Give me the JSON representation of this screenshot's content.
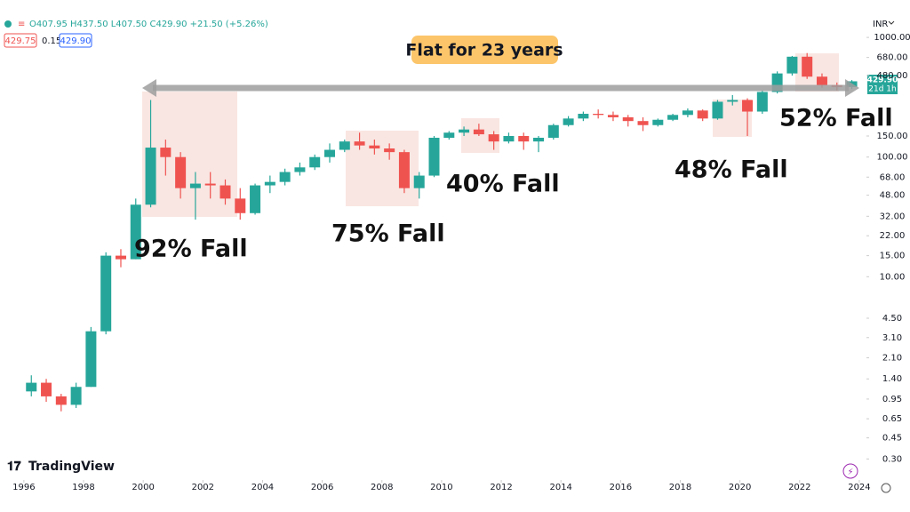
{
  "chart_data": {
    "type": "candlestick",
    "ohlc_text": "O407.95 H437.50 L407.50 C429.90 +21.50 (+5.26%)",
    "bid": "429.75",
    "spread": "0.15",
    "ask": "429.90",
    "currency": "INR",
    "last_price_label": "429.90",
    "countdown": "21d 1h",
    "brand": "TradingView",
    "badge": "Flat for 23 years",
    "annotations": [
      "92% Fall",
      "75% Fall",
      "40% Fall",
      "48% Fall",
      "52% Fall"
    ],
    "log_scale": true,
    "up_color": "#26a69a",
    "down_color": "#ef5350",
    "x": [
      1996.0,
      1996.5,
      1997.0,
      1997.5,
      1998.0,
      1998.5,
      1999.0,
      1999.5,
      2000.0,
      2000.5,
      2001.0,
      2001.5,
      2002.0,
      2002.5,
      2003.0,
      2003.5,
      2004.0,
      2004.5,
      2005.0,
      2005.5,
      2006.0,
      2006.5,
      2007.0,
      2007.5,
      2008.0,
      2008.5,
      2009.0,
      2009.5,
      2010.0,
      2010.5,
      2011.0,
      2011.5,
      2012.0,
      2012.5,
      2013.0,
      2013.5,
      2014.0,
      2014.5,
      2015.0,
      2015.5,
      2016.0,
      2016.5,
      2017.0,
      2017.5,
      2018.0,
      2018.5,
      2019.0,
      2019.5,
      2020.0,
      2020.5,
      2021.0,
      2021.5,
      2022.0,
      2022.5,
      2023.0,
      2023.5
    ],
    "open": [
      1.1,
      1.3,
      1.0,
      0.85,
      1.2,
      3.5,
      15,
      14,
      40,
      120,
      100,
      55,
      60,
      58,
      45,
      34,
      58,
      62,
      75,
      82,
      100,
      115,
      135,
      125,
      118,
      110,
      55,
      70,
      145,
      160,
      170,
      155,
      135,
      150,
      135,
      145,
      185,
      210,
      230,
      225,
      215,
      200,
      185,
      205,
      225,
      245,
      210,
      290,
      300,
      240,
      350,
      500,
      690,
      470,
      400,
      385
    ],
    "high": [
      1.5,
      1.4,
      1.05,
      1.3,
      3.8,
      16,
      17,
      45,
      300,
      140,
      110,
      75,
      75,
      65,
      55,
      60,
      70,
      80,
      90,
      105,
      130,
      140,
      160,
      140,
      130,
      115,
      75,
      150,
      165,
      180,
      190,
      165,
      160,
      160,
      150,
      190,
      220,
      240,
      250,
      240,
      225,
      215,
      210,
      230,
      255,
      250,
      300,
      330,
      310,
      360,
      520,
      700,
      740,
      500,
      420,
      440
    ],
    "low": [
      1.0,
      0.9,
      0.75,
      0.8,
      1.2,
      3.3,
      12,
      14,
      38,
      70,
      45,
      30,
      45,
      40,
      30,
      33,
      50,
      58,
      70,
      78,
      90,
      110,
      115,
      105,
      95,
      50,
      45,
      68,
      140,
      150,
      150,
      115,
      130,
      115,
      110,
      140,
      180,
      200,
      210,
      200,
      180,
      165,
      180,
      200,
      215,
      200,
      205,
      270,
      150,
      230,
      340,
      480,
      450,
      380,
      360,
      370
    ],
    "close": [
      1.3,
      1.0,
      0.85,
      1.2,
      3.5,
      15,
      14,
      40,
      120,
      100,
      55,
      60,
      58,
      45,
      34,
      58,
      62,
      75,
      82,
      100,
      115,
      135,
      125,
      118,
      110,
      55,
      70,
      145,
      160,
      170,
      155,
      135,
      150,
      135,
      145,
      185,
      210,
      230,
      225,
      215,
      200,
      185,
      205,
      225,
      245,
      210,
      290,
      300,
      240,
      350,
      500,
      690,
      470,
      400,
      385,
      429.9
    ],
    "xlim": [
      1995.2,
      2024.24
    ],
    "xticks": [
      1996,
      1998,
      2000,
      2002,
      2004,
      2006,
      2008,
      2010,
      2012,
      2014,
      2016,
      2018,
      2020,
      2022,
      2024
    ],
    "ylim": [
      0.2,
      1230
    ],
    "yticks": [
      {
        "value": 1000,
        "label": "1000.00"
      },
      {
        "value": 680,
        "label": "680.00"
      },
      {
        "value": 480,
        "label": "480.00"
      },
      {
        "value": 150,
        "label": "150.00"
      },
      {
        "value": 100,
        "label": "100.00"
      },
      {
        "value": 68,
        "label": "68.00"
      },
      {
        "value": 48,
        "label": "48.00"
      },
      {
        "value": 32,
        "label": "32.00"
      },
      {
        "value": 22,
        "label": "22.00"
      },
      {
        "value": 15,
        "label": "15.00"
      },
      {
        "value": 10,
        "label": "10.00"
      },
      {
        "value": 4.5,
        "label": "4.50"
      },
      {
        "value": 3.1,
        "label": "3.10"
      },
      {
        "value": 2.1,
        "label": "2.10"
      },
      {
        "value": 1.4,
        "label": "1.40"
      },
      {
        "value": 0.95,
        "label": "0.95"
      },
      {
        "value": 0.65,
        "label": "0.65"
      },
      {
        "value": 0.45,
        "label": "0.45"
      },
      {
        "value": 0.3,
        "label": "0.30"
      }
    ]
  }
}
